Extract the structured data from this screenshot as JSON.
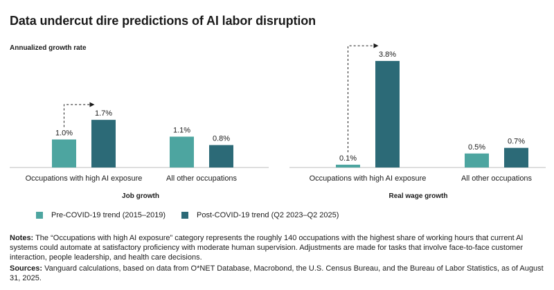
{
  "title": "Data undercut dire predictions of AI labor disruption",
  "colors": {
    "pre": "#4da5a0",
    "post": "#2c6a77",
    "axis": "#bdbdbd",
    "text": "#1a1a1a"
  },
  "legend": {
    "pre": "Pre-COVID-19 trend (2015–2019)",
    "post": "Post-COVID-19 trend (Q2 2023–Q2 2025)"
  },
  "chart_data": [
    {
      "type": "bar",
      "title": "Job growth",
      "ylabel": "Annualized growth rate",
      "categories": [
        "Occupations with high AI exposure",
        "All other occupations"
      ],
      "series": [
        {
          "name": "Pre-COVID-19 trend (2015–2019)",
          "values": [
            1.0,
            1.1
          ],
          "labels": [
            "1.0%",
            "1.1%"
          ]
        },
        {
          "name": "Post-COVID-19 trend (Q2 2023–Q2 2025)",
          "values": [
            1.7,
            0.8
          ],
          "labels": [
            "1.7%",
            "0.8%"
          ]
        }
      ],
      "ylim": [
        0,
        4.0
      ],
      "annotation": "dashed arrow from pre to post bar for high AI exposure"
    },
    {
      "type": "bar",
      "title": "Real wage growth",
      "ylabel": "",
      "categories": [
        "Occupations with high AI exposure",
        "All other occupations"
      ],
      "series": [
        {
          "name": "Pre-COVID-19 trend (2015–2019)",
          "values": [
            0.1,
            0.5
          ],
          "labels": [
            "0.1%",
            "0.5%"
          ]
        },
        {
          "name": "Post-COVID-19 trend (Q2 2023–Q2 2025)",
          "values": [
            3.8,
            0.7
          ],
          "labels": [
            "3.8%",
            "0.7%"
          ]
        }
      ],
      "ylim": [
        0,
        4.0
      ],
      "annotation": "dashed arrow from pre to post bar for high AI exposure"
    }
  ],
  "notes": {
    "label": "Notes:",
    "text": " The “Occupations with high AI exposure” category represents the roughly 140 occupations with the highest share of working hours that current AI systems could automate at satisfactory proficiency with moderate human supervision. Adjustments are made for tasks that involve face-to-face customer interaction, people leadership, and health care decisions."
  },
  "sources": {
    "label": "Sources:",
    "text": " Vanguard calculations, based on data from O*NET Database, Macrobond, the U.S. Census Bureau, and the Bureau of Labor Statistics, as of August 31, 2025."
  }
}
